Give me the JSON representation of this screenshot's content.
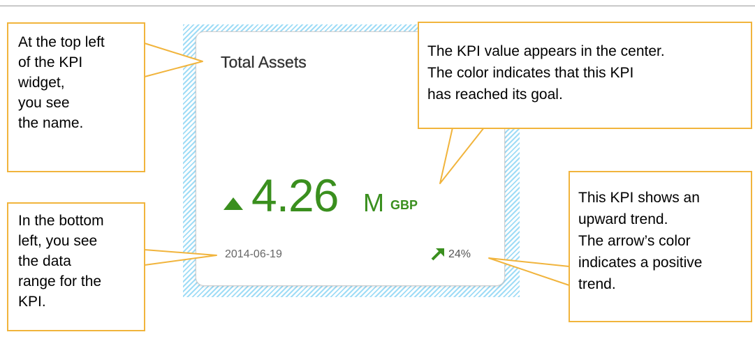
{
  "kpi": {
    "title": "Total Assets",
    "value": "4.26",
    "unit": "M",
    "currency": "GBP",
    "date": "2014-06-19",
    "trend_percent": "24%",
    "trend_direction": "up",
    "value_color": "#3a8f1e"
  },
  "callouts": {
    "name": "At the top left\nof the KPI\nwidget,\nyou see\nthe name.",
    "range": "In the bottom\nleft, you see\nthe data\nrange for the\nKPI.",
    "value": "The KPI value appears in the center.\nThe color indicates that this KPI\nhas reached its goal.",
    "trend": "This KPI shows an\nupward trend.\nThe arrow’s color\nindicates a positive\ntrend."
  },
  "colors": {
    "callout_border": "#f1b43c",
    "selection_hatch": "#9fdcf6",
    "positive": "#3a8f1e"
  },
  "icons": {
    "value_indicator": "up-triangle-icon",
    "trend_indicator": "arrow-up-right-icon"
  }
}
